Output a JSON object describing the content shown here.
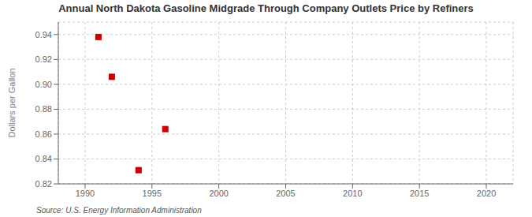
{
  "chart_data": {
    "type": "scatter",
    "title": "Annual North Dakota Gasoline Midgrade Through Company Outlets Price by Refiners",
    "ylabel": "Dollars per Gallon",
    "annotations": [
      "Source: U.S. Energy Information Administration"
    ],
    "x": [
      1991,
      1992,
      1994,
      1996
    ],
    "values": [
      0.938,
      0.906,
      0.831,
      0.864
    ],
    "color": "#cc0000",
    "marker": "square",
    "xlim": [
      1988,
      2022
    ],
    "xticks": [
      1990,
      1995,
      2000,
      2005,
      2010,
      2015,
      2020
    ],
    "ylim": [
      0.82,
      0.95
    ],
    "yticks": [
      0.82,
      0.84,
      0.86,
      0.88,
      {
        "value": 0.9,
        "label": "0.90"
      },
      0.92,
      0.94
    ],
    "grid": true
  }
}
